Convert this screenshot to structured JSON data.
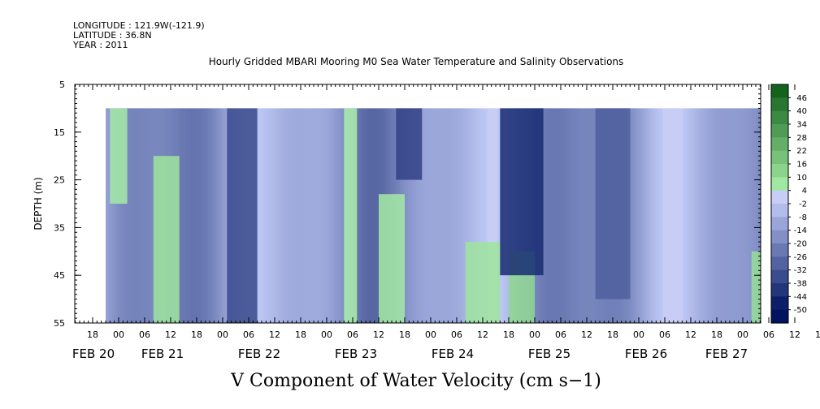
{
  "header": {
    "longitude": "LONGITUDE : 121.9W(-121.9)",
    "latitude": "LATITUDE : 36.8N",
    "year": "YEAR : 2011"
  },
  "chart_data": {
    "type": "heatmap",
    "title": "Hourly Gridded MBARI Mooring M0 Sea Water Temperature and Salinity Observations",
    "xlabel": "V Component of Water Velocity (cm s−1)",
    "ylabel": "DEPTH (m)",
    "ylim": [
      55,
      5
    ],
    "y_ticks": [
      5,
      15,
      25,
      35,
      45,
      55
    ],
    "x_hour_ticks": [
      "18",
      "00",
      "06",
      "12",
      "18",
      "00",
      "06",
      "12",
      "18",
      "00",
      "06",
      "12",
      "18",
      "00",
      "06",
      "12",
      "18",
      "00",
      "06",
      "12",
      "18",
      "00",
      "06",
      "12",
      "18",
      "00",
      "06",
      "12",
      "18",
      "00",
      "06",
      "12"
    ],
    "x_date_labels": [
      "FEB 20",
      "FEB 21",
      "FEB 22",
      "FEB 23",
      "FEB 24",
      "FEB 25",
      "FEB 26",
      "FEB 27"
    ],
    "colorbar_levels": [
      "46",
      "40",
      "34",
      "28",
      "22",
      "16",
      "10",
      "4",
      "-2",
      "-8",
      "-14",
      "-20",
      "-26",
      "-32",
      "-38",
      "-44",
      "-50"
    ],
    "colorbar_range": [
      -50,
      52
    ],
    "data_depth_range": [
      10,
      55
    ],
    "data_time_range_hours_from_feb20_00": [
      -3,
      183
    ],
    "features": [
      {
        "depth_top": 10,
        "depth_bottom": 30,
        "time_start": -2,
        "time_end": 2,
        "value": 6
      },
      {
        "depth_top": 20,
        "depth_bottom": 55,
        "time_start": 8,
        "time_end": 14,
        "value": 8
      },
      {
        "depth_top": 10,
        "depth_bottom": 55,
        "time_start": 52,
        "time_end": 55,
        "value": 4
      },
      {
        "depth_top": 28,
        "depth_bottom": 55,
        "time_start": 60,
        "time_end": 66,
        "value": 6
      },
      {
        "depth_top": 38,
        "depth_bottom": 55,
        "time_start": 80,
        "time_end": 88,
        "value": 8
      },
      {
        "depth_top": 40,
        "depth_bottom": 55,
        "time_start": 90,
        "time_end": 96,
        "value": 12
      },
      {
        "depth_top": 40,
        "depth_bottom": 55,
        "time_start": 146,
        "time_end": 156,
        "value": 10
      },
      {
        "depth_top": 10,
        "depth_bottom": 30,
        "time_start": 168,
        "time_end": 176,
        "value": 4
      },
      {
        "depth_top": 10,
        "depth_bottom": 40,
        "time_start": 177,
        "time_end": 182,
        "value": 4
      },
      {
        "depth_top": 42,
        "depth_bottom": 55,
        "time_start": 165,
        "time_end": 172,
        "value": 6
      },
      {
        "depth_top": 10,
        "depth_bottom": 55,
        "time_start": 25,
        "time_end": 32,
        "value": -36
      },
      {
        "depth_top": 10,
        "depth_bottom": 45,
        "time_start": 88,
        "time_end": 98,
        "value": -44
      },
      {
        "depth_top": 10,
        "depth_bottom": 25,
        "time_start": 64,
        "time_end": 70,
        "value": -38
      },
      {
        "depth_top": 10,
        "depth_bottom": 50,
        "time_start": 110,
        "time_end": 118,
        "value": -30
      }
    ]
  }
}
